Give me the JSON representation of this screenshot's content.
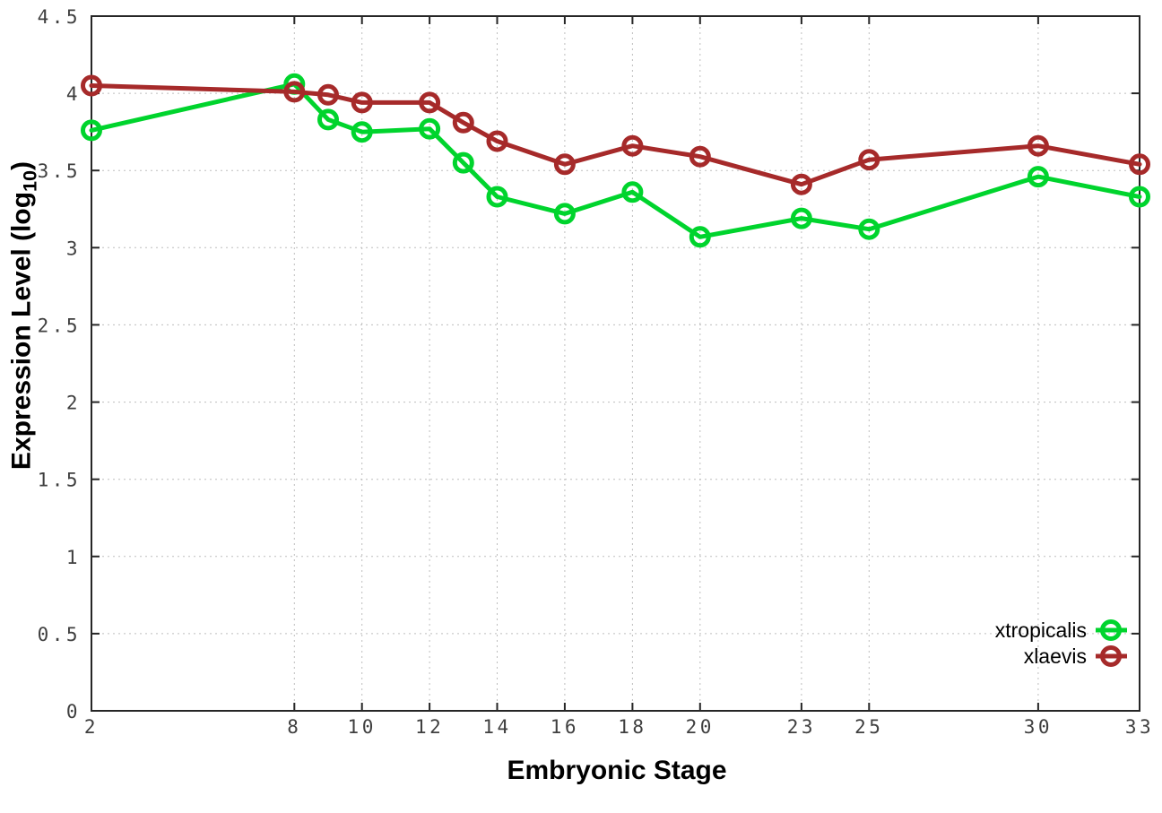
{
  "figure": {
    "background": "#ffffff"
  },
  "chart_data": {
    "type": "line",
    "title": "",
    "xlabel": "Embryonic Stage",
    "ylabel": "Expression Level (log10)",
    "ylabel_parts": {
      "prefix": "Expression Level (log",
      "sub": "10",
      "suffix": ")"
    },
    "x": [
      2,
      8,
      9,
      10,
      12,
      13,
      14,
      16,
      18,
      20,
      23,
      25,
      30,
      33
    ],
    "xlim": [
      2,
      33
    ],
    "ylim": [
      0,
      4.5
    ],
    "x_ticks": [
      2,
      8,
      10,
      12,
      14,
      16,
      18,
      20,
      23,
      25,
      30,
      33
    ],
    "y_ticks": [
      0,
      0.5,
      1,
      1.5,
      2,
      2.5,
      3,
      3.5,
      4,
      4.5
    ],
    "y_tick_labels": [
      "0",
      "0.5",
      "1",
      "1.5",
      "2",
      "2.5",
      "3",
      "3.5",
      "4",
      "4.5"
    ],
    "grid": true,
    "legend_position": "inside-bottom-right",
    "marker": "open-circle",
    "axis_color": "#262626",
    "grid_color": "#bdbdbd",
    "series": [
      {
        "name": "xtropicalis",
        "color": "#00d42d",
        "values": [
          3.76,
          4.06,
          3.83,
          3.75,
          3.77,
          3.55,
          3.33,
          3.22,
          3.36,
          3.07,
          3.19,
          3.12,
          3.46,
          3.33
        ]
      },
      {
        "name": "xlaevis",
        "color": "#a62a2a",
        "values": [
          4.05,
          4.01,
          3.99,
          3.94,
          3.94,
          3.81,
          3.69,
          3.54,
          3.66,
          3.59,
          3.41,
          3.57,
          3.66,
          3.54
        ]
      }
    ]
  }
}
